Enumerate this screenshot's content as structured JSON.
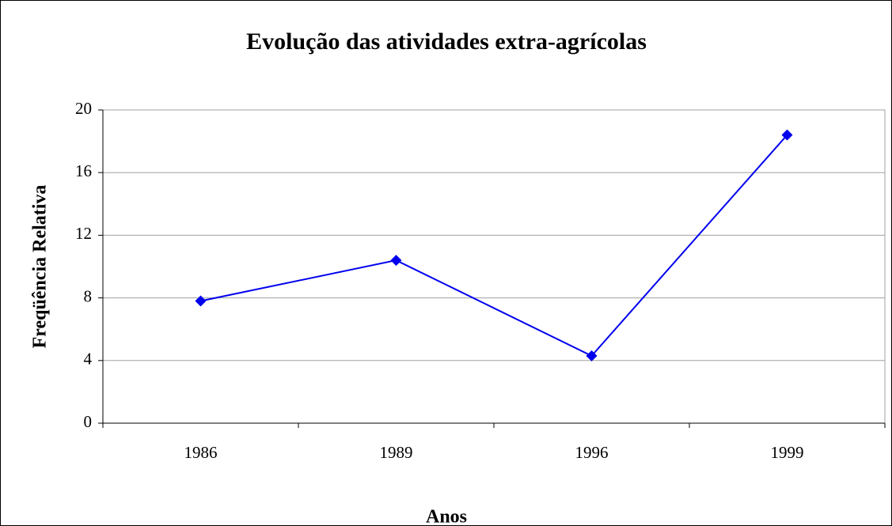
{
  "chart_data": {
    "type": "line",
    "title": "Evolução das atividades extra-agrícolas",
    "x_label": "Anos",
    "y_label": "Freqüência Relativa",
    "categories": [
      "1986",
      "1989",
      "1996",
      "1999"
    ],
    "values": [
      7.8,
      10.4,
      4.3,
      18.4
    ],
    "color": "#0000ee",
    "ylim": [
      0,
      20
    ],
    "yticks": [
      0,
      4,
      8,
      12,
      16,
      20
    ],
    "grid": true
  }
}
